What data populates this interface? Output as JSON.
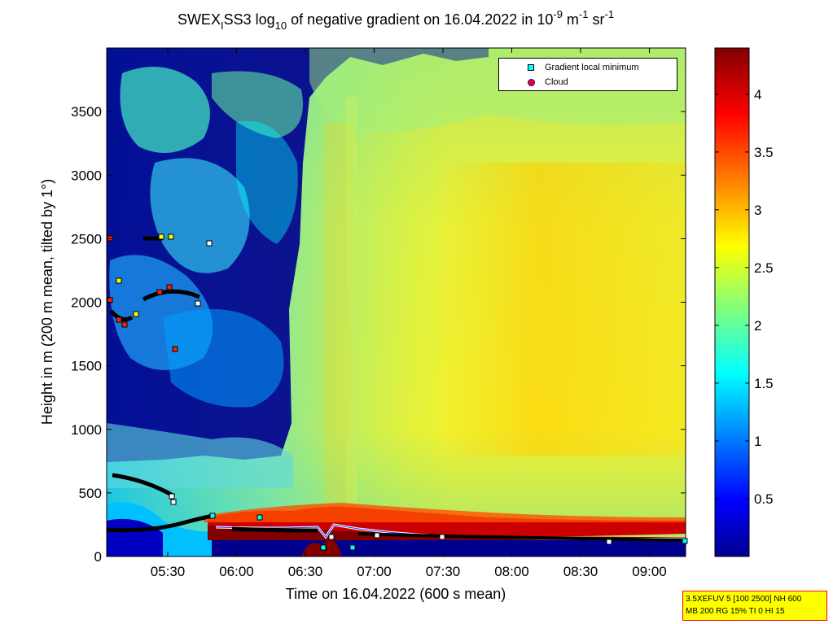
{
  "chart_data": {
    "type": "heatmap",
    "title": {
      "pre": "SWEX",
      "sub1": "I",
      "mid": "SS3 log",
      "sub2": "10",
      "post": " of negative gradient on 16.04.2022 in 10",
      "sup1": "-9",
      "unit_m": " m",
      "sup2": "-1",
      "unit_sr": " sr",
      "sup3": "-1"
    },
    "xlabel": "Time on 16.04.2022 (600 s mean)",
    "ylabel": "Height in m (200 m mean, tilted by 1°)",
    "x_ticks": [
      "05:30",
      "06:00",
      "06:30",
      "07:00",
      "07:30",
      "08:00",
      "08:30",
      "09:00"
    ],
    "y_ticks": [
      "0",
      "500",
      "1000",
      "1500",
      "2000",
      "2500",
      "3000",
      "3500"
    ],
    "y_tick_values": [
      0,
      500,
      1000,
      1500,
      2000,
      2500,
      3000,
      3500
    ],
    "ylim": [
      0,
      4000
    ],
    "colorbar": {
      "ticks": [
        "0.5",
        "1",
        "1.5",
        "2",
        "2.5",
        "3",
        "3.5",
        "4"
      ],
      "values": [
        0.5,
        1,
        1.5,
        2,
        2.5,
        3,
        3.5,
        4
      ],
      "range": [
        0,
        4.4
      ],
      "colormap": "jet"
    },
    "legend": [
      {
        "label": "Gradient local minimum",
        "marker": "square",
        "color": "#00ffff"
      },
      {
        "label": "Cloud",
        "marker": "circle",
        "color": "#ff0000"
      }
    ],
    "legend_position": "top-right"
  },
  "info_box": {
    "line1": "3.5XEFUV 5 [100 2500] NH 600",
    "line2": "MB 200 RG 15% TI 0 HI 15"
  }
}
